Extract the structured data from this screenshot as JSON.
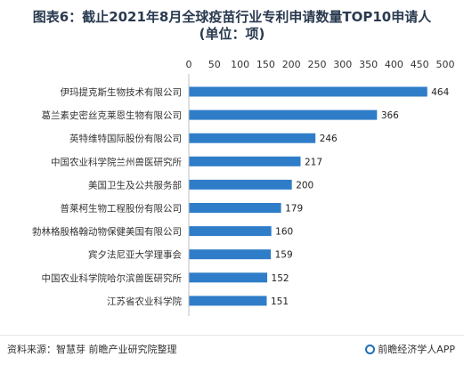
{
  "title_line1": "图表6：截止2021年8月全球疫苗行业专利申请数量TOP10申请人",
  "title_line2": "(单位：项)",
  "footer": {
    "source": "资料来源：智慧芽 前瞻产业研究院整理",
    "brand": "前瞻经济学人APP"
  },
  "colors": {
    "bar": "#2f7dc8",
    "title": "#2a3a50"
  },
  "chart_data": {
    "type": "bar",
    "orientation": "horizontal",
    "categories": [
      "伊玛提克斯生物技术有限公司",
      "葛兰素史密丝克莱恩生物有限公司",
      "英特维特国际股份有限公司",
      "中国农业科学院兰州兽医研究所",
      "美国卫生及公共服务部",
      "普莱柯生物工程股份有限公司",
      "勃林格殷格翰动物保健美国有限公司",
      "宾夕法尼亚大学理事会",
      "中国农业科学院哈尔滨兽医研究所",
      "江苏省农业科学院"
    ],
    "values": [
      464,
      366,
      246,
      217,
      200,
      179,
      160,
      159,
      152,
      151
    ],
    "xlim": [
      0,
      500
    ],
    "ticks": [
      "0",
      "50",
      "100",
      "150",
      "200",
      "250",
      "300",
      "350",
      "400",
      "450",
      "500"
    ],
    "axis_position": "top",
    "grid": false,
    "legend": false
  }
}
